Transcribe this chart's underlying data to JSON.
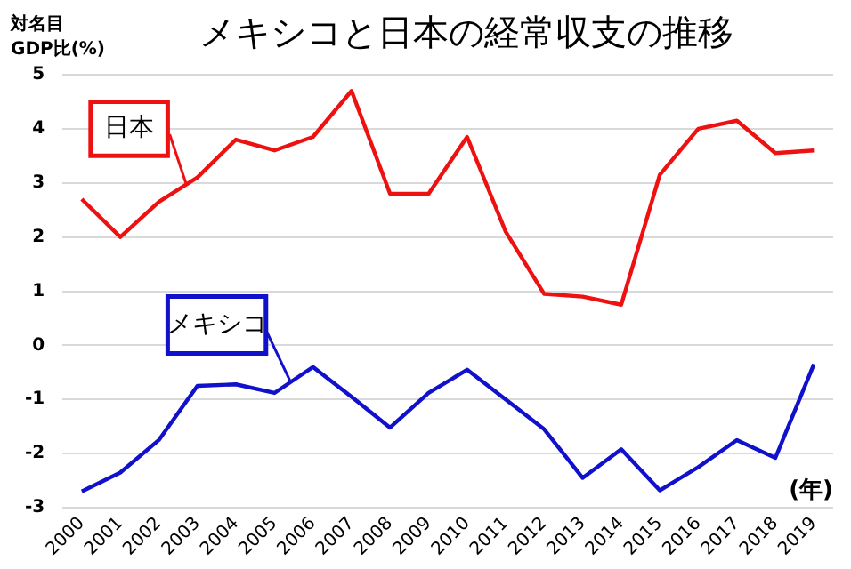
{
  "chart_data": {
    "type": "line",
    "title": "メキシコと日本の経常収支の推移",
    "ylabel": "対名目\nGDP比(%)",
    "xlabel": "(年)",
    "categories": [
      "2000",
      "2001",
      "2002",
      "2003",
      "2004",
      "2005",
      "2006",
      "2007",
      "2008",
      "2009",
      "2010",
      "2011",
      "2012",
      "2013",
      "2014",
      "2015",
      "2016",
      "2017",
      "2018",
      "2019"
    ],
    "series": [
      {
        "name": "日本",
        "color": "#ee1111",
        "values": [
          2.7,
          2.0,
          2.65,
          3.1,
          3.8,
          3.6,
          3.85,
          4.7,
          2.8,
          2.8,
          3.85,
          2.1,
          0.95,
          0.9,
          0.75,
          3.15,
          4.0,
          4.15,
          3.55,
          3.6
        ]
      },
      {
        "name": "メキシコ",
        "color": "#1111cc",
        "values": [
          -2.7,
          -2.35,
          -1.75,
          -0.75,
          -0.72,
          -0.88,
          -0.4,
          -0.95,
          -1.52,
          -0.88,
          -0.45,
          -1.0,
          -1.55,
          -2.45,
          -1.92,
          -2.68,
          -2.25,
          -1.75,
          -2.08,
          -0.35
        ]
      }
    ],
    "ylim": [
      -3,
      5
    ],
    "yticks": [
      -3,
      -2,
      -1,
      0,
      1,
      2,
      3,
      4,
      5
    ],
    "grid": "y",
    "legend": false,
    "marker": "none",
    "line_style": "solid"
  }
}
